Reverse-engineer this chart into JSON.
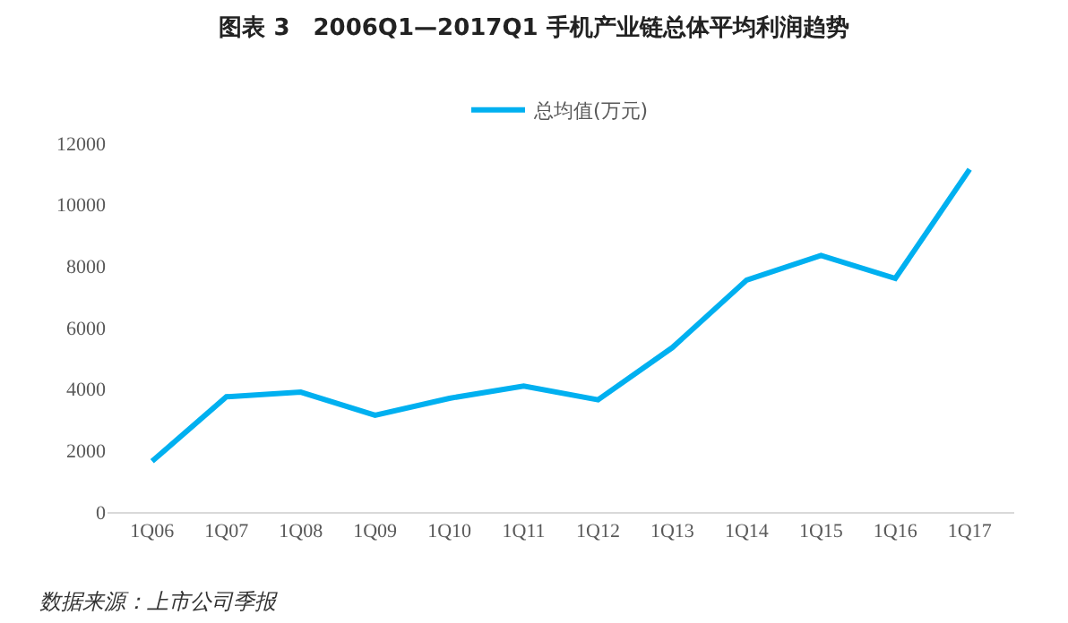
{
  "chart_data": {
    "type": "line",
    "title": "图表 3　2006Q1—2017Q1 手机产业链总体平均利润趋势",
    "categories": [
      "1Q06",
      "1Q07",
      "1Q08",
      "1Q09",
      "1Q10",
      "1Q11",
      "1Q12",
      "1Q13",
      "1Q14",
      "1Q15",
      "1Q16",
      "1Q17"
    ],
    "series": [
      {
        "name": "总均值(万元)",
        "color": "#00b0f0",
        "values": [
          1650,
          3750,
          3900,
          3150,
          3700,
          4100,
          3650,
          5350,
          7550,
          8350,
          7600,
          11150
        ]
      }
    ],
    "ylim": [
      0,
      12000
    ],
    "yticks": [
      0,
      2000,
      4000,
      6000,
      8000,
      10000,
      12000
    ],
    "grid": false,
    "legend": "top",
    "marker": "none",
    "line_style": "solid",
    "annotations": [
      "数据来源：上市公司季报"
    ]
  }
}
